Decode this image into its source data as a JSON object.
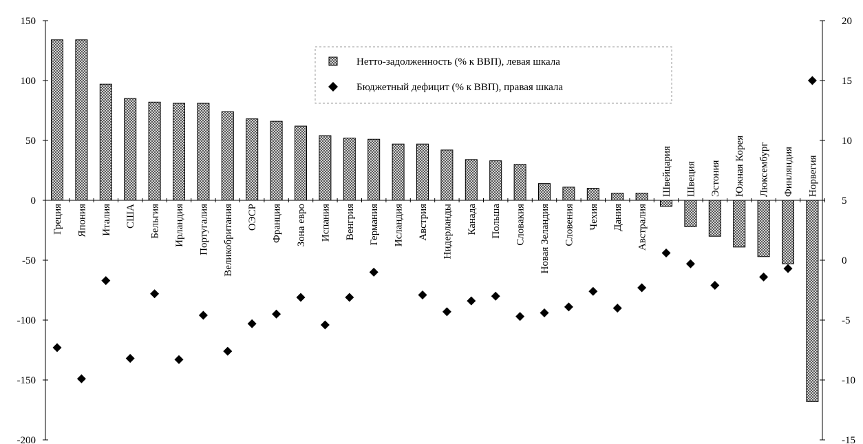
{
  "chart_data": {
    "type": "bar",
    "title": "",
    "xlabel": "",
    "ylabel": "",
    "ylim": [
      -200,
      150
    ],
    "y2lim": [
      -15,
      20
    ],
    "y_ticks": [
      150,
      100,
      50,
      0,
      -50,
      -100,
      -150,
      -200
    ],
    "y2_ticks": [
      20,
      15,
      10,
      5,
      0,
      -5,
      -10,
      -15
    ],
    "y_tick_labels": [
      "150",
      "100",
      "50",
      "0",
      "-50",
      "-100",
      "-150",
      "-200"
    ],
    "y2_tick_labels": [
      "20",
      "15",
      "10",
      "5",
      "0",
      "-5",
      "-10",
      "-15"
    ],
    "legend_position": "top-center",
    "grid": false,
    "categories": [
      "Греция",
      "Япония",
      "Италия",
      "США",
      "Бельгия",
      "Ирландия",
      "Португалия",
      "Великобритания",
      "ОЭСР",
      "Франция",
      "Зона евро",
      "Испания",
      "Венгрия",
      "Германия",
      "Исландия",
      "Австрия",
      "Нидерланды",
      "Канада",
      "Польша",
      "Словакия",
      "Новая Зеландия",
      "Словения",
      "Чехия",
      "Дания",
      "Австралия",
      "Швейцария",
      "Швеция",
      "Эстония",
      "Южная Корея",
      "Люксембург",
      "Финляндия",
      "Норвегия"
    ],
    "series": [
      {
        "name": "Нетто-задолженность (% к ВВП), левая шкала",
        "type": "bar",
        "axis": "left",
        "values": [
          134,
          134,
          97,
          85,
          82,
          81,
          81,
          74,
          68,
          66,
          62,
          54,
          52,
          51,
          47,
          47,
          42,
          34,
          33,
          30,
          14,
          11,
          10,
          6,
          6,
          -5,
          -22,
          -30,
          -39,
          -47,
          -53,
          -168
        ]
      },
      {
        "name": "Бюджетный дефицит (% к ВВП), правая шкала",
        "type": "scatter",
        "axis": "right",
        "values": [
          -7.3,
          -9.9,
          -1.7,
          -8.2,
          -2.8,
          -8.3,
          -4.6,
          -7.6,
          -5.3,
          -4.5,
          -3.1,
          -5.4,
          -3.1,
          -1.0,
          null,
          -2.9,
          -4.3,
          -3.4,
          -3.0,
          -4.7,
          -4.4,
          -3.9,
          -2.6,
          -4.0,
          -2.3,
          0.6,
          -0.3,
          -2.1,
          null,
          -1.4,
          -0.7,
          15.0
        ]
      }
    ]
  },
  "legend": {
    "items": [
      "Нетто-задолженность (% к ВВП), левая шкала",
      "Бюджетный дефицит (% к ВВП), правая шкала"
    ]
  },
  "colors": {
    "bar_fill": "#bdbdbd",
    "bar_stroke": "#000000",
    "marker": "#000000"
  }
}
